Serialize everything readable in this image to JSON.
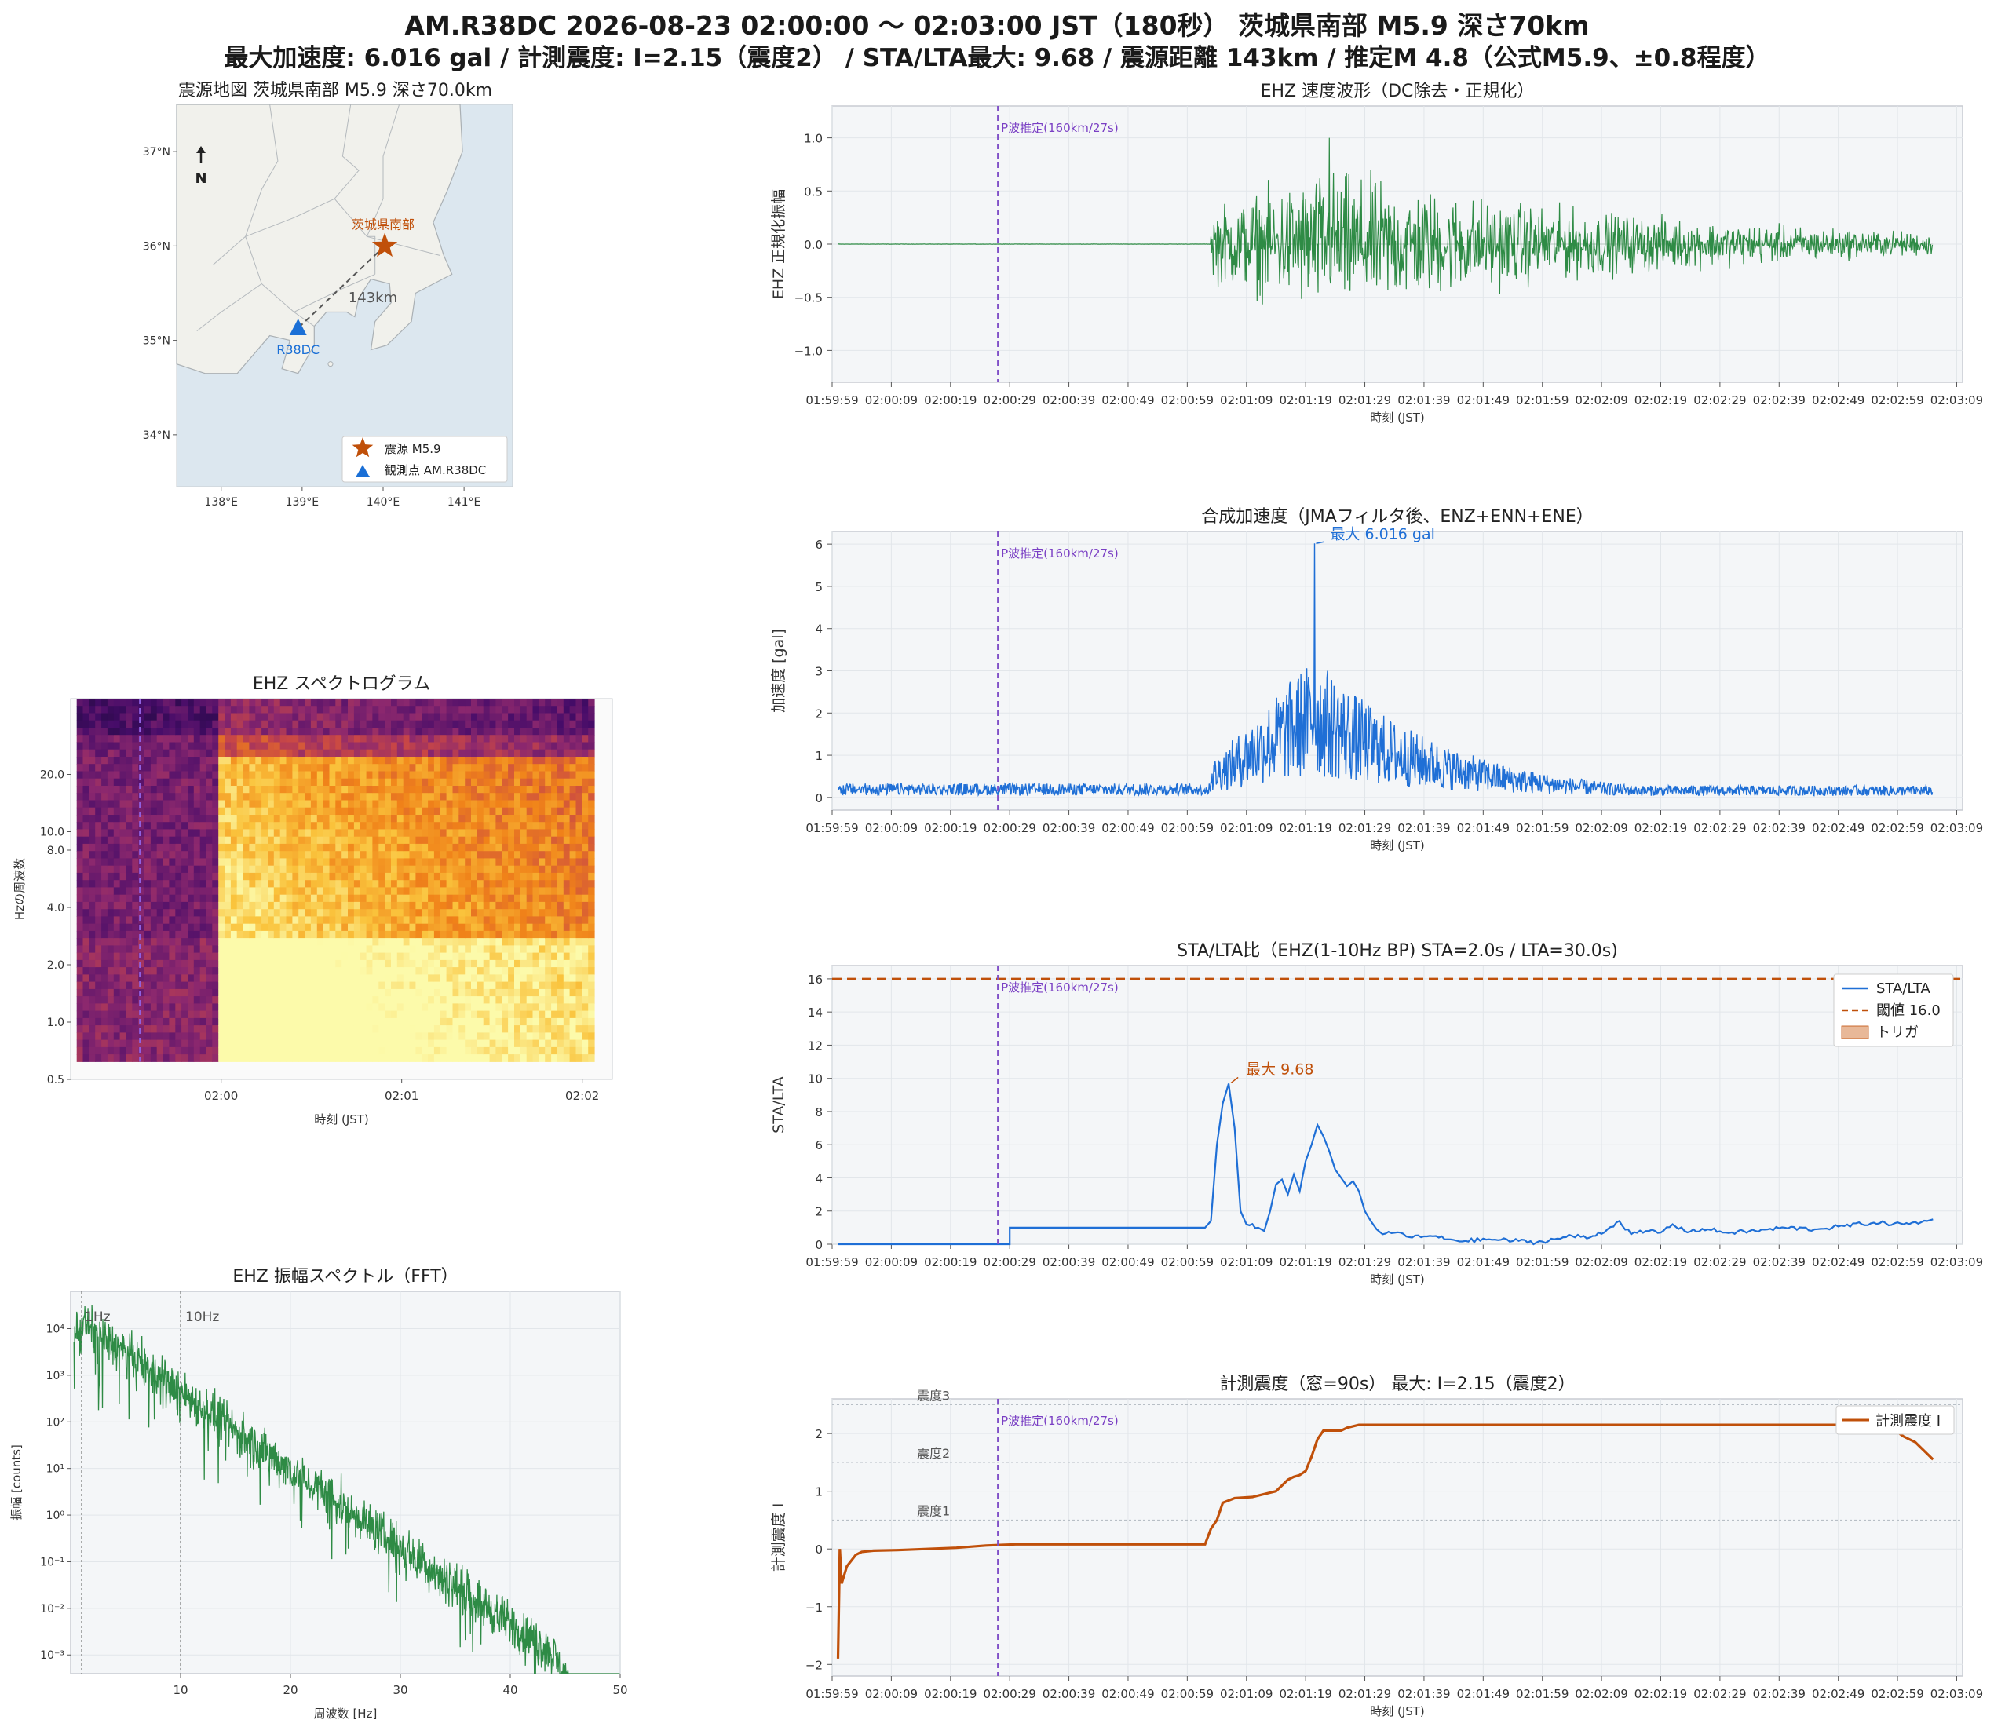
{
  "header": {
    "title": "AM.R38DC  2026-08-23 02:00:00 〜 02:03:00 JST（180秒）  茨城県南部 M5.9  深さ70km",
    "subtitle": "最大加速度: 6.016 gal  /  計測震度: I=2.15（震度2）  /  STA/LTA最大: 9.68  /  震源距離 143km  /  推定M 4.8（公式M5.9、±0.8程度）"
  },
  "colors": {
    "velocity": "#2e8b45",
    "accel": "#1f6fd6",
    "stalta": "#1f6fd6",
    "threshold": "#c0500a",
    "intensity": "#c0500a",
    "fft": "#2e8b45",
    "p_wave": "#8050c8",
    "epicenter": "#c0500a",
    "station": "#1a6fd6",
    "land": "#f1f1ec",
    "sea": "#dce7ef"
  },
  "map": {
    "title": "震源地図  茨城県南部  M5.9  深さ70.0km",
    "lat_ticks": [
      "37°N",
      "36°N",
      "35°N",
      "34°N"
    ],
    "lon_ticks": [
      "138°E",
      "139°E",
      "140°E",
      "141°E"
    ],
    "north_label": "N",
    "epicenter_label": "茨城県南部",
    "station_label": "R38DC",
    "distance_label": "143km",
    "legend": [
      {
        "label": "震源 M5.9",
        "icon": "star-icon"
      },
      {
        "label": "観測点 AM.R38DC",
        "icon": "triangle-icon"
      }
    ]
  },
  "time_axis": {
    "xlabel": "時刻 (JST)",
    "ticks": [
      "01:59:59",
      "02:00:09",
      "02:00:19",
      "02:00:29",
      "02:00:39",
      "02:00:49",
      "02:00:59",
      "02:01:09",
      "02:01:19",
      "02:01:29",
      "02:01:39",
      "02:01:49",
      "02:01:59",
      "02:02:09",
      "02:02:19",
      "02:02:29",
      "02:02:39",
      "02:02:49",
      "02:02:59",
      "02:03:09"
    ],
    "p_wave_label": "P波推定(160km/27s)"
  },
  "velocity_panel": {
    "title": "EHZ 速度波形（DC除去・正規化）",
    "ylabel": "EHZ 正規化振幅",
    "yticks": [
      "1.0",
      "0.5",
      "0.0",
      "−0.5",
      "−1.0"
    ]
  },
  "accel_panel": {
    "title": "合成加速度（JMAフィルタ後、ENZ+ENN+ENE）",
    "ylabel": "加速度 [gal]",
    "yticks": [
      "6",
      "5",
      "4",
      "3",
      "2",
      "1",
      "0"
    ],
    "peak_label": "最大 6.016 gal"
  },
  "stalta_panel": {
    "title": "STA/LTA比（EHZ(1-10Hz BP)  STA=2.0s / LTA=30.0s)",
    "ylabel": "STA/LTA",
    "yticks": [
      "16",
      "14",
      "12",
      "10",
      "8",
      "6",
      "4",
      "2",
      "0"
    ],
    "peak_label": "最大 9.68",
    "legend": [
      "STA/LTA",
      "閾値 16.0",
      "トリガ"
    ]
  },
  "intensity_panel": {
    "title": "計測震度（窓=90s）  最大: I=2.15（震度2）",
    "ylabel": "計測震度 I",
    "yticks": [
      "2",
      "1",
      "0",
      "−1",
      "−2"
    ],
    "levels": [
      "震度3",
      "震度2",
      "震度1"
    ],
    "legend": "計測震度 I"
  },
  "spectrogram_panel": {
    "title": "EHZ スペクトログラム",
    "ylabel": "Hzの周波数",
    "xlabel": "時刻 (JST)",
    "yticks": [
      "20.0",
      "10.0",
      "8.0",
      "4.0",
      "2.0",
      "1.0",
      "0.5"
    ],
    "xticks": [
      "02:00",
      "02:01",
      "02:02"
    ]
  },
  "fft_panel": {
    "title": "EHZ 振幅スペクトル（FFT）",
    "ylabel": "振幅 [counts]",
    "xlabel": "周波数 [Hz]",
    "xticks": [
      "10",
      "20",
      "30",
      "40",
      "50"
    ],
    "yticks": [
      "10⁴",
      "10³",
      "10²",
      "10¹",
      "10⁰",
      "10⁻¹",
      "10⁻²",
      "10⁻³"
    ],
    "marker_1hz": "1Hz",
    "marker_10hz": "10Hz"
  },
  "chart_data": [
    {
      "type": "line",
      "name": "velocity",
      "x_range_s": [
        -1,
        190
      ],
      "ylim": [
        -1.3,
        1.3
      ],
      "p_wave_s": 27,
      "onset_s": 63,
      "peak_s": 83,
      "peak_abs": 1.0
    },
    {
      "type": "line",
      "name": "accel",
      "x_range_s": [
        -1,
        190
      ],
      "ylim": [
        -0.3,
        6.3
      ],
      "onset_s": 63,
      "peak_s": 80.5,
      "peak_value": 6.016,
      "noise_level": 0.15
    },
    {
      "type": "line",
      "name": "stalta",
      "x_range_s": [
        -1,
        190
      ],
      "ylim": [
        0,
        16.8
      ],
      "threshold": 16.0,
      "points": [
        [
          0,
          0
        ],
        [
          29,
          0
        ],
        [
          29,
          1.0
        ],
        [
          62,
          1.0
        ],
        [
          63,
          1.4
        ],
        [
          64,
          6.0
        ],
        [
          65,
          8.5
        ],
        [
          66,
          9.68
        ],
        [
          67,
          7.0
        ],
        [
          68,
          2.0
        ],
        [
          69,
          1.2
        ],
        [
          71,
          1.0
        ],
        [
          72,
          0.8
        ],
        [
          73,
          2.0
        ],
        [
          74,
          3.6
        ],
        [
          75,
          3.9
        ],
        [
          76,
          3.0
        ],
        [
          77,
          4.2
        ],
        [
          78,
          3.2
        ],
        [
          79,
          5.0
        ],
        [
          80,
          6.0
        ],
        [
          81,
          7.2
        ],
        [
          82,
          6.5
        ],
        [
          83,
          5.6
        ],
        [
          84,
          4.5
        ],
        [
          85,
          4.0
        ],
        [
          86,
          3.5
        ],
        [
          87,
          3.8
        ],
        [
          88,
          3.2
        ],
        [
          89,
          2.0
        ],
        [
          90,
          1.4
        ],
        [
          91,
          0.9
        ],
        [
          92,
          0.6
        ],
        [
          95,
          0.7
        ],
        [
          97,
          0.4
        ],
        [
          100,
          0.5
        ],
        [
          103,
          0.3
        ],
        [
          106,
          0.2
        ],
        [
          110,
          0.3
        ],
        [
          115,
          0.2
        ],
        [
          118,
          0.1
        ],
        [
          121,
          0.3
        ],
        [
          124,
          0.5
        ],
        [
          127,
          0.4
        ],
        [
          130,
          0.9
        ],
        [
          132,
          1.4
        ],
        [
          134,
          0.6
        ],
        [
          137,
          0.8
        ],
        [
          139,
          0.7
        ],
        [
          141,
          1.2
        ],
        [
          143,
          0.8
        ],
        [
          147,
          0.9
        ],
        [
          150,
          0.7
        ],
        [
          155,
          0.8
        ],
        [
          160,
          1.0
        ],
        [
          165,
          0.9
        ],
        [
          170,
          1.1
        ],
        [
          175,
          1.3
        ],
        [
          180,
          1.2
        ],
        [
          184,
          1.4
        ],
        [
          185,
          1.5
        ]
      ]
    },
    {
      "type": "line",
      "name": "intensity",
      "x_range_s": [
        -1,
        190
      ],
      "ylim": [
        -2.2,
        2.6
      ],
      "levels": [
        2.5,
        1.5,
        0.5
      ],
      "max": 2.15,
      "points": [
        [
          0,
          -1.9
        ],
        [
          0.3,
          0.0
        ],
        [
          0.6,
          -0.6
        ],
        [
          1.5,
          -0.3
        ],
        [
          3,
          -0.1
        ],
        [
          4,
          -0.05
        ],
        [
          6,
          -0.03
        ],
        [
          10,
          -0.02
        ],
        [
          15,
          0.0
        ],
        [
          20,
          0.02
        ],
        [
          25,
          0.06
        ],
        [
          30,
          0.08
        ],
        [
          40,
          0.08
        ],
        [
          50,
          0.08
        ],
        [
          62,
          0.08
        ],
        [
          63,
          0.35
        ],
        [
          64,
          0.5
        ],
        [
          65,
          0.8
        ],
        [
          67,
          0.88
        ],
        [
          70,
          0.9
        ],
        [
          72,
          0.95
        ],
        [
          74,
          1.0
        ],
        [
          75,
          1.1
        ],
        [
          76,
          1.2
        ],
        [
          77,
          1.25
        ],
        [
          78,
          1.28
        ],
        [
          79,
          1.35
        ],
        [
          80,
          1.6
        ],
        [
          81,
          1.9
        ],
        [
          82,
          2.05
        ],
        [
          85,
          2.05
        ],
        [
          86,
          2.1
        ],
        [
          88,
          2.15
        ],
        [
          176,
          2.15
        ],
        [
          178,
          2.1
        ],
        [
          180,
          1.95
        ],
        [
          182,
          1.85
        ],
        [
          184,
          1.65
        ],
        [
          185,
          1.55
        ]
      ]
    },
    {
      "type": "heatmap",
      "name": "spectrogram",
      "x_range_s": [
        -50,
        130
      ],
      "y_range_hz": [
        0.5,
        50
      ],
      "y_scale": "log",
      "onset_s": 0,
      "p_wave_s": -27
    },
    {
      "type": "line",
      "name": "fft",
      "x_range_hz": [
        0,
        50
      ],
      "y_scale": "log",
      "ylim_log10": [
        -3.4,
        4.8
      ],
      "start_log10": 4.3,
      "end_log10": -2.8
    }
  ]
}
